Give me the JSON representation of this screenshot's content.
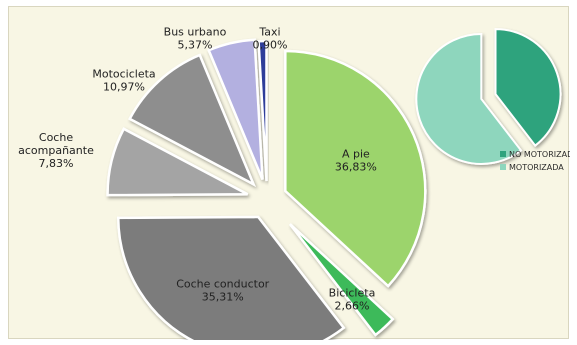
{
  "chart_data": [
    {
      "type": "pie",
      "title": "",
      "exploded": true,
      "slices": [
        {
          "label": "A pie",
          "value": 36.83,
          "value_label": "36,83%",
          "color": "#9cd46c"
        },
        {
          "label": "Bicicleta",
          "value": 2.66,
          "value_label": "2,66%",
          "color": "#3dba5a"
        },
        {
          "label": "Coche conductor",
          "value": 35.31,
          "value_label": "35,31%",
          "color": "#7b7b7b"
        },
        {
          "label": "Coche acompañante",
          "value": 7.83,
          "value_label": "7,83%",
          "color": "#a4a4a4"
        },
        {
          "label": "Motocicleta",
          "value": 10.97,
          "value_label": "10,97%",
          "color": "#8e8e8e"
        },
        {
          "label": "Bus urbano",
          "value": 5.37,
          "value_label": "5,37%",
          "color": "#b3b0e0"
        },
        {
          "label": "Taxi",
          "value": 0.9,
          "value_label": "0,90%",
          "color": "#2d3c9a"
        }
      ]
    },
    {
      "type": "pie",
      "title": "",
      "exploded": true,
      "legend_position": "bottom-right",
      "slices": [
        {
          "label": "NO MOTORIZADA",
          "value": 39.49,
          "color": "#2fa37d"
        },
        {
          "label": "MOTORIZADA",
          "value": 60.38,
          "color": "#8ed6bd"
        }
      ]
    }
  ]
}
